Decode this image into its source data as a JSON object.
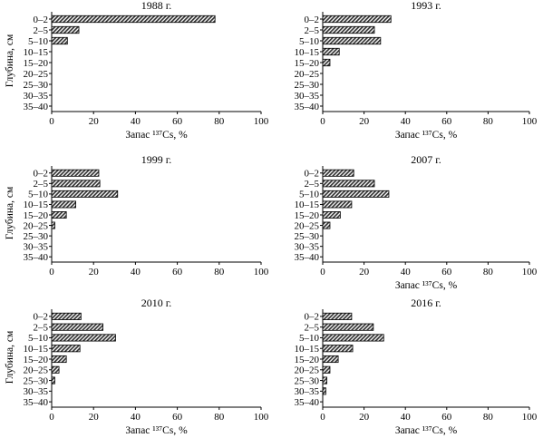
{
  "chart_data": [
    {
      "type": "bar",
      "orientation": "horizontal",
      "title": "1988 г.",
      "categories": [
        "0–2",
        "2–5",
        "5–10",
        "10–15",
        "15–20",
        "20–25",
        "25–30",
        "30–35",
        "35–40"
      ],
      "values": [
        78,
        13,
        7.5,
        0,
        0,
        0,
        0,
        0,
        0
      ],
      "xlabel": "Запас ¹³⁷Cs, %",
      "ylabel": "Глубина, см",
      "xlim": [
        0,
        100
      ],
      "xticks": [
        "0",
        "20",
        "40",
        "60",
        "80",
        "100"
      ],
      "grid": false
    },
    {
      "type": "bar",
      "orientation": "horizontal",
      "title": "1993 г.",
      "categories": [
        "0–2",
        "2–5",
        "5–10",
        "10–15",
        "15–20",
        "20–25",
        "25–30",
        "30–35",
        "35–40"
      ],
      "values": [
        33,
        25,
        28,
        8,
        3.5,
        0,
        0,
        0,
        0
      ],
      "xlabel": "Запас ¹³⁷Cs, %",
      "ylabel": "",
      "xlim": [
        0,
        100
      ],
      "xticks": [
        "0",
        "20",
        "40",
        "60",
        "80",
        "100"
      ],
      "grid": false
    },
    {
      "type": "bar",
      "orientation": "horizontal",
      "title": "1999 г.",
      "categories": [
        "0–2",
        "2–5",
        "5–10",
        "10–15",
        "15–20",
        "20–25",
        "25–30",
        "30–35",
        "35–40"
      ],
      "values": [
        22.5,
        23,
        31.5,
        11.5,
        7,
        1.5,
        0,
        0,
        0
      ],
      "xlabel": "",
      "ylabel": "Глубина, см",
      "xlim": [
        0,
        100
      ],
      "xticks": [
        "0",
        "20",
        "40",
        "60",
        "80",
        "100"
      ],
      "grid": false
    },
    {
      "type": "bar",
      "orientation": "horizontal",
      "title": "2007 г.",
      "categories": [
        "0–2",
        "2–5",
        "5–10",
        "10–15",
        "15–20",
        "20–25",
        "25–30",
        "30–35",
        "35–40"
      ],
      "values": [
        15,
        25,
        32,
        14,
        8.5,
        3.5,
        0,
        0,
        0
      ],
      "xlabel": "Запас ¹³⁷Cs, %",
      "ylabel": "",
      "xlim": [
        0,
        100
      ],
      "xticks": [
        "0",
        "20",
        "40",
        "60",
        "80",
        "100"
      ],
      "grid": false
    },
    {
      "type": "bar",
      "orientation": "horizontal",
      "title": "2010 г.",
      "categories": [
        "0–2",
        "2–5",
        "5–10",
        "10–15",
        "15–20",
        "20–25",
        "25–30",
        "30–35",
        "35–40"
      ],
      "values": [
        14,
        24.5,
        30.5,
        13.5,
        7,
        3.5,
        1.5,
        0,
        0
      ],
      "xlabel": "Запас ¹³⁷Cs, %",
      "ylabel": "Глубина, см",
      "xlim": [
        0,
        100
      ],
      "xticks": [
        "0",
        "20",
        "40",
        "60",
        "80",
        "100"
      ],
      "grid": false
    },
    {
      "type": "bar",
      "orientation": "horizontal",
      "title": "2016 г.",
      "categories": [
        "0–2",
        "2–5",
        "5–10",
        "10–15",
        "15–20",
        "20–25",
        "25–30",
        "30–35",
        "35–40"
      ],
      "values": [
        14,
        24.5,
        29.5,
        14.5,
        7.5,
        3.5,
        2,
        1.5,
        0
      ],
      "xlabel": "Запас ¹³⁷Cs, %",
      "ylabel": "",
      "xlim": [
        0,
        100
      ],
      "xticks": [
        "0",
        "20",
        "40",
        "60",
        "80",
        "100"
      ],
      "grid": false
    }
  ],
  "style": {
    "axis_color": "#000000",
    "bar_stroke": "#000000",
    "bar_fill_pattern": "crosshatch-dark"
  }
}
